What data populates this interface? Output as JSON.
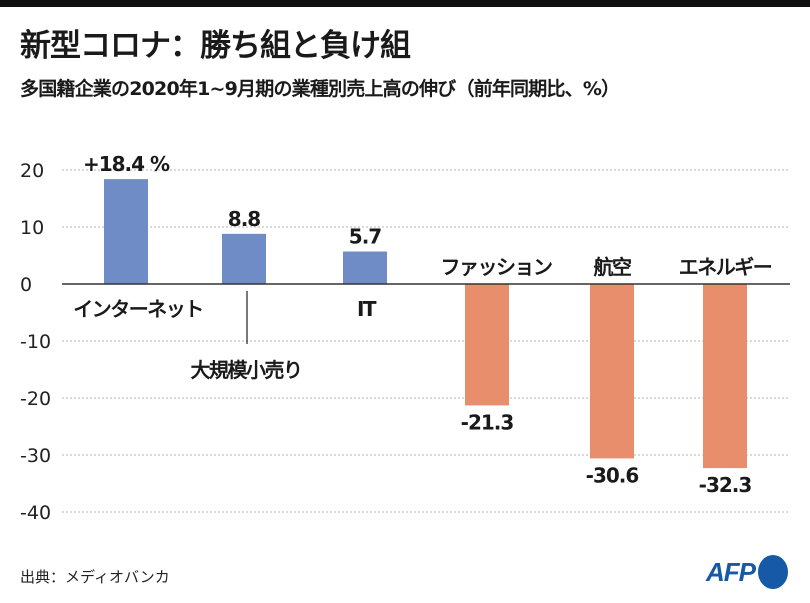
{
  "header": {
    "title": "新型コロナ：勝ち組と負け組",
    "subtitle": "多国籍企業の2020年1~9月期の業種別売上高の伸び（前年同期比、%）"
  },
  "chart_data": {
    "type": "bar",
    "title": "新型コロナ：勝ち組と負け組",
    "subtitle": "多国籍企業の2020年1~9月期の業種別売上高の伸び（前年同期比、%）",
    "xlabel": "",
    "ylabel": "",
    "ylim": [
      -40,
      20
    ],
    "yticks": [
      20,
      10,
      0,
      -10,
      -20,
      -30,
      -40
    ],
    "ytick_labels": [
      "20",
      "10",
      "0",
      "-10",
      "-20",
      "-30",
      "-40"
    ],
    "grid": true,
    "categories": [
      "インターネット",
      "大規模小売り",
      "IT",
      "ファッション",
      "航空",
      "エネルギー"
    ],
    "values": [
      18.4,
      8.8,
      5.7,
      -21.3,
      -30.6,
      -32.3
    ],
    "value_labels": [
      "+18.4 %",
      "8.8",
      "5.7",
      "-21.3",
      "-30.6",
      "-32.3"
    ],
    "colors": {
      "positive": "#6f8cc6",
      "negative": "#e88e6c"
    }
  },
  "footer": {
    "source": "出典：メディオバンカ",
    "logo": "AFP"
  }
}
